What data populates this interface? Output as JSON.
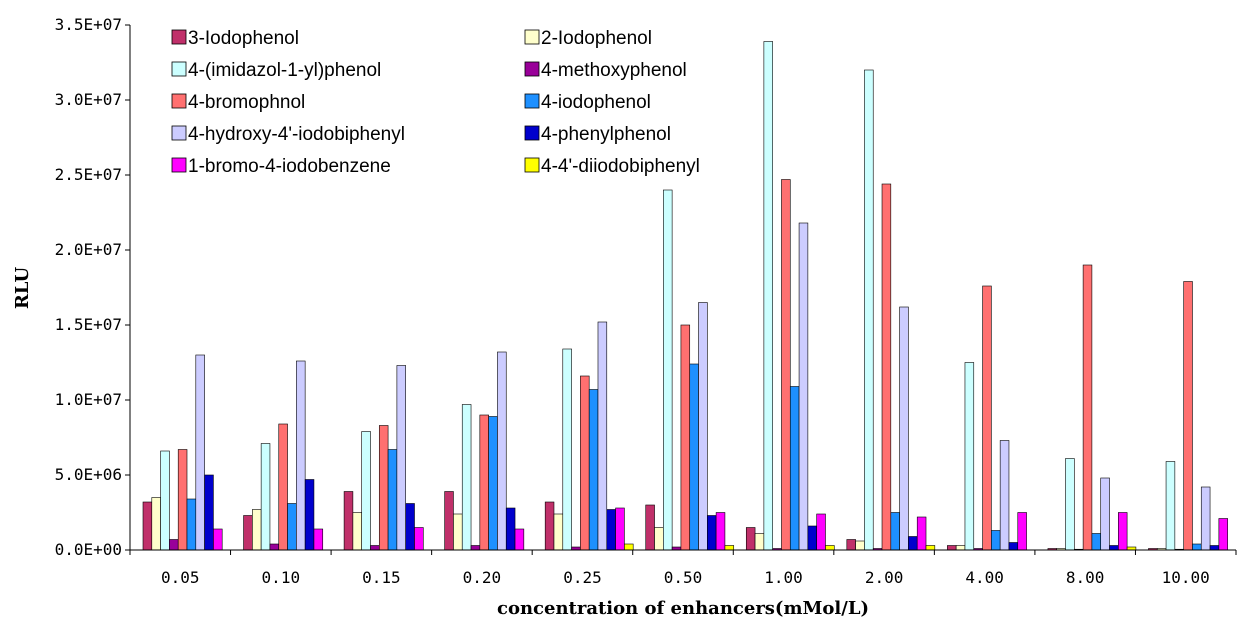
{
  "chart_data": {
    "type": "bar",
    "xlabel": "concentration of enhancers(mMol/L)",
    "ylabel": "RLU",
    "ylim": [
      0,
      35000000
    ],
    "yticks": [
      "0.0E+00",
      "5.0E+06",
      "1.0E+07",
      "1.5E+07",
      "2.0E+07",
      "2.5E+07",
      "3.0E+07",
      "3.5E+07"
    ],
    "categories": [
      "0.05",
      "0.10",
      "0.15",
      "0.20",
      "0.25",
      "0.50",
      "1.00",
      "2.00",
      "4.00",
      "8.00",
      "10.00"
    ],
    "grid": false,
    "legend_position": "top-left",
    "series": [
      {
        "name": "3-Iodophenol",
        "color": "#c0306a",
        "values": [
          3200000,
          2300000,
          3900000,
          3900000,
          3200000,
          3000000,
          1500000,
          700000,
          300000,
          100000,
          100000
        ]
      },
      {
        "name": "2-Iodophenol",
        "color": "#ffffcc",
        "values": [
          3500000,
          2700000,
          2500000,
          2400000,
          2400000,
          1500000,
          1100000,
          600000,
          300000,
          100000,
          100000
        ]
      },
      {
        "name": "4-(imidazol-1-yl)phenol",
        "color": "#ccffff",
        "values": [
          6600000,
          7100000,
          7900000,
          9700000,
          13400000,
          24000000,
          33900000,
          32000000,
          12500000,
          6100000,
          5900000
        ]
      },
      {
        "name": "4-methoxyphenol",
        "color": "#990099",
        "values": [
          700000,
          400000,
          300000,
          300000,
          200000,
          200000,
          100000,
          100000,
          100000,
          50000,
          50000
        ]
      },
      {
        "name": "4-bromophnol",
        "color": "#ff7070",
        "values": [
          6700000,
          8400000,
          8300000,
          9000000,
          11600000,
          15000000,
          24700000,
          24400000,
          17600000,
          19000000,
          17900000
        ]
      },
      {
        "name": "4-iodophenol",
        "color": "#1e90ff",
        "values": [
          3400000,
          3100000,
          6700000,
          8900000,
          10700000,
          12400000,
          10900000,
          2500000,
          1300000,
          1100000,
          400000
        ]
      },
      {
        "name": "4-hydroxy-4'-iodobiphenyl",
        "color": "#ccccff",
        "values": [
          13000000,
          12600000,
          12300000,
          13200000,
          15200000,
          16500000,
          21800000,
          16200000,
          7300000,
          4800000,
          4200000
        ]
      },
      {
        "name": "4-phenylphenol",
        "color": "#0000cc",
        "values": [
          5000000,
          4700000,
          3100000,
          2800000,
          2700000,
          2300000,
          1600000,
          900000,
          500000,
          300000,
          300000
        ]
      },
      {
        "name": "1-bromo-4-iodobenzene",
        "color": "#ff00ff",
        "values": [
          1400000,
          1400000,
          1500000,
          1400000,
          2800000,
          2500000,
          2400000,
          2200000,
          2500000,
          2500000,
          2100000
        ]
      },
      {
        "name": "4-4'-diiodobiphenyl",
        "color": "#ffff00",
        "values": [
          0,
          0,
          0,
          0,
          400000,
          300000,
          300000,
          300000,
          0,
          200000,
          0
        ]
      }
    ]
  }
}
